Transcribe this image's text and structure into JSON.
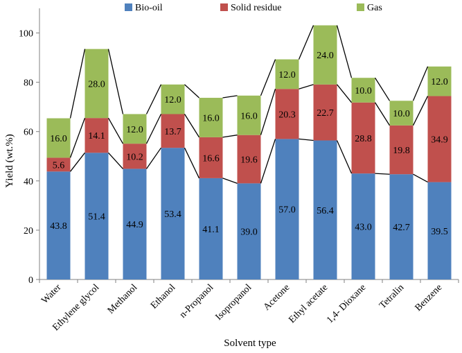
{
  "chart_data": {
    "type": "bar",
    "stacked": true,
    "categories": [
      "Water",
      "Ethylene glycol",
      "Methanol",
      "Ethanol",
      "n-Propanol",
      "Isopropanol",
      "Acetone",
      "Ethyl acetate",
      "1,4- Dioxane",
      "Tetralin",
      "Benzene"
    ],
    "series": [
      {
        "name": "Bio-oil",
        "color": "#4f81bd",
        "values": [
          43.8,
          51.4,
          44.9,
          53.4,
          41.1,
          39.0,
          57.0,
          56.4,
          43.0,
          42.7,
          39.5
        ],
        "labels": [
          "43.8",
          "51.4",
          "44.9",
          "53.4",
          "41.1",
          "39.0",
          "57.0",
          "56.4",
          "43.0",
          "42.7",
          "39.5"
        ]
      },
      {
        "name": "Solid residue",
        "color": "#c0504d",
        "values": [
          5.6,
          14.1,
          10.2,
          13.7,
          16.6,
          19.6,
          20.3,
          22.7,
          28.8,
          19.8,
          34.9
        ],
        "labels": [
          "5.6",
          "14.1",
          "10.2",
          "13.7",
          "16.6",
          "19.6",
          "20.3",
          "22.7",
          "28.8",
          "19.8",
          "34.9"
        ]
      },
      {
        "name": "Gas",
        "color": "#9bbb59",
        "values": [
          16.0,
          28.0,
          12.0,
          12.0,
          16.0,
          16.0,
          12.0,
          24.0,
          10.0,
          10.0,
          12.0
        ],
        "labels": [
          "16.0",
          "28.0",
          "12.0",
          "12.0",
          "16.0",
          "16.0",
          "12.0",
          "24.0",
          "10.0",
          "10.0",
          "12.0"
        ]
      }
    ],
    "xlabel": "Solvent type",
    "ylabel": "Yield (wt.%)",
    "ylim": [
      0,
      110
    ],
    "yticks": [
      "0",
      "20",
      "40",
      "60",
      "80",
      "100"
    ],
    "grid": false,
    "legend_position": "top",
    "connector_lines": true
  }
}
